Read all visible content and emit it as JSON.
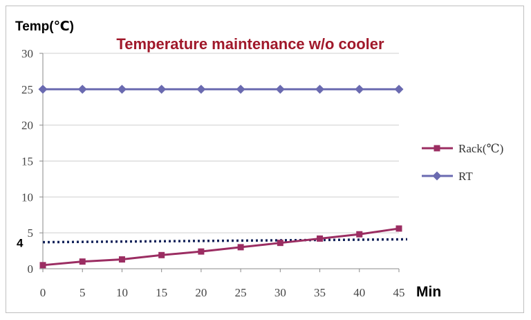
{
  "chart_data": {
    "type": "line",
    "title": "Temperature maintenance w/o cooler",
    "ylabel": "Temp(℃)",
    "xlabel": "Min",
    "x": [
      0,
      5,
      10,
      15,
      20,
      25,
      30,
      35,
      40,
      45
    ],
    "xlim": [
      0,
      45
    ],
    "ylim": [
      0,
      30
    ],
    "yticks": [
      0,
      5,
      10,
      15,
      20,
      25,
      30
    ],
    "grid": true,
    "legend_position": "right",
    "series": [
      {
        "name": "Rack(℃)",
        "values": [
          0.5,
          1.0,
          1.3,
          1.9,
          2.4,
          3.0,
          3.6,
          4.2,
          4.8,
          5.6
        ],
        "color": "#9b2d62",
        "marker": "square"
      },
      {
        "name": "RT",
        "values": [
          25,
          25,
          25,
          25,
          25,
          25,
          25,
          25,
          25,
          25
        ],
        "color": "#6a6ab0",
        "marker": "diamond"
      }
    ],
    "reference_line": {
      "label": "4",
      "y_start": 3.7,
      "y_end": 4.1,
      "color": "#13235a",
      "style": "dotted"
    }
  }
}
